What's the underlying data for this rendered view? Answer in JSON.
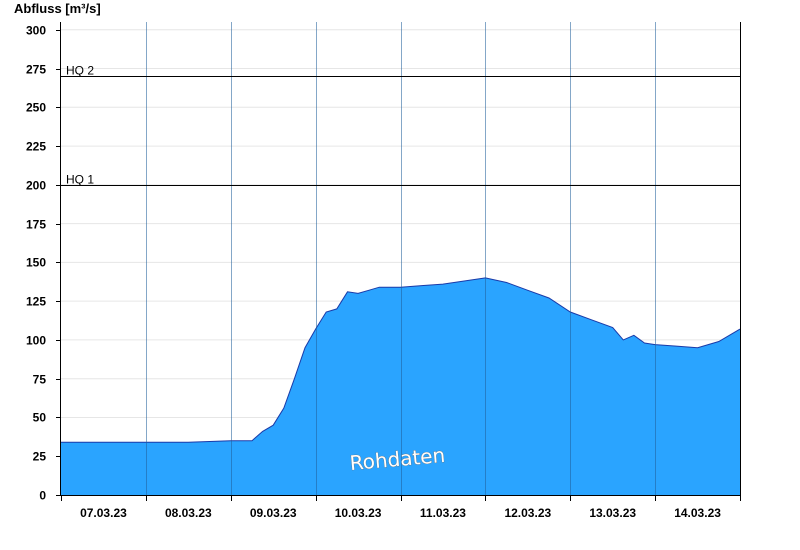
{
  "chart_data": {
    "type": "area",
    "title": "",
    "ylabel": "Abfluss [m³/s]",
    "xlabel": "",
    "ylim": [
      0,
      305
    ],
    "yticks": [
      0,
      25,
      50,
      75,
      100,
      125,
      150,
      175,
      200,
      225,
      250,
      275,
      300
    ],
    "x_days": [
      "07.03.23",
      "08.03.23",
      "09.03.23",
      "10.03.23",
      "11.03.23",
      "12.03.23",
      "13.03.23",
      "14.03.23"
    ],
    "grid": "horizontal",
    "fill_color": "#2aa4ff",
    "line_color": "#1a3aa8",
    "watermark": "Rohdaten",
    "reference_lines": [
      {
        "label": "HQ 1",
        "value": 200
      },
      {
        "label": "HQ 2",
        "value": 270
      }
    ],
    "series": [
      {
        "x": [
          "07.03.23 00:00",
          "07.03.23 12:00",
          "08.03.23 00:00",
          "08.03.23 12:00",
          "09.03.23 00:00",
          "09.03.23 03:00",
          "09.03.23 06:00",
          "09.03.23 09:00",
          "09.03.23 12:00",
          "09.03.23 15:00",
          "09.03.23 18:00",
          "09.03.23 21:00",
          "10.03.23 00:00",
          "10.03.23 03:00",
          "10.03.23 06:00",
          "10.03.23 09:00",
          "10.03.23 12:00",
          "10.03.23 15:00",
          "10.03.23 18:00",
          "10.03.23 21:00",
          "11.03.23 00:00",
          "11.03.23 06:00",
          "11.03.23 12:00",
          "11.03.23 18:00",
          "12.03.23 00:00",
          "12.03.23 06:00",
          "12.03.23 12:00",
          "12.03.23 18:00",
          "13.03.23 00:00",
          "13.03.23 06:00",
          "13.03.23 12:00",
          "13.03.23 15:00",
          "13.03.23 18:00",
          "13.03.23 21:00",
          "14.03.23 00:00",
          "14.03.23 06:00",
          "14.03.23 12:00",
          "14.03.23 18:00",
          "15.03.23 00:00"
        ],
        "y": [
          34,
          34,
          34,
          34,
          35,
          35,
          35,
          41,
          45,
          56,
          75,
          95,
          107,
          118,
          120,
          131,
          130,
          132,
          134,
          134,
          134,
          135,
          136,
          138,
          140,
          137,
          132,
          127,
          118,
          113,
          108,
          100,
          103,
          98,
          97,
          96,
          95,
          99,
          107
        ]
      }
    ]
  }
}
